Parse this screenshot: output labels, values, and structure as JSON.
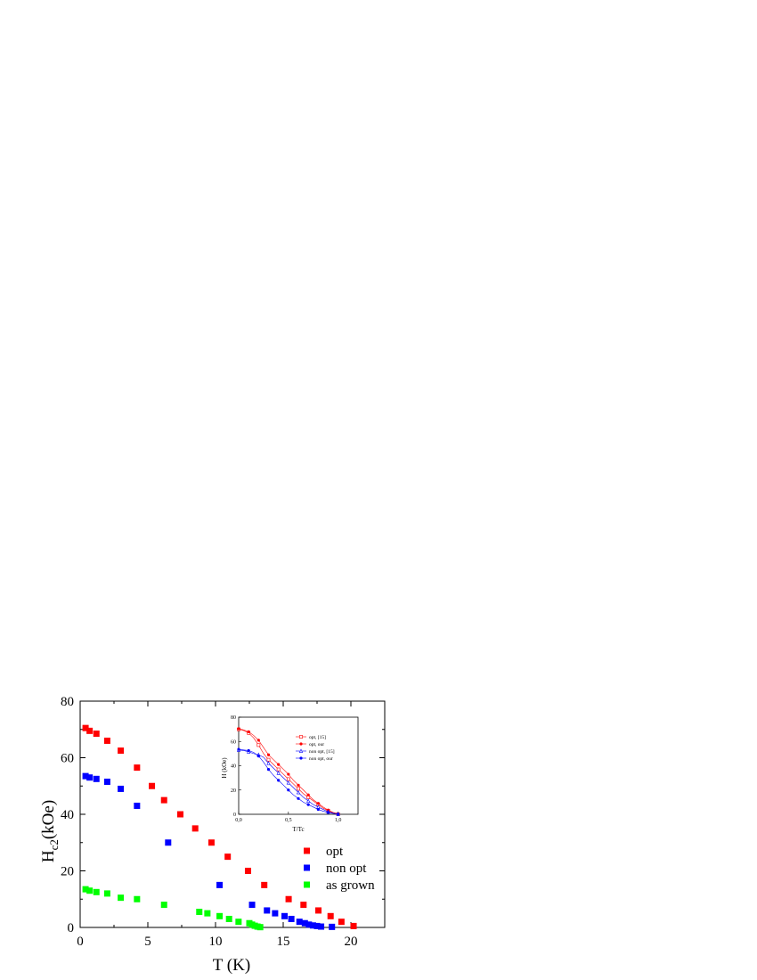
{
  "chart_data": [
    {
      "type": "scatter",
      "xlabel": "T (K)",
      "ylabel_main": "H",
      "ylabel_sub": "c2",
      "ylabel_rest": "(kOe)",
      "xlim": [
        0,
        22.5
      ],
      "ylim": [
        0,
        80
      ],
      "xticks": [
        0,
        5,
        10,
        15,
        20
      ],
      "yticks": [
        0,
        20,
        40,
        60,
        80
      ],
      "grid": false,
      "legend_position": "bottom-right",
      "series": [
        {
          "name": "opt",
          "color": "#ff0000",
          "marker": "square",
          "x": [
            0.4,
            0.7,
            1.2,
            2.0,
            3.0,
            4.2,
            5.3,
            6.2,
            7.4,
            8.5,
            9.7,
            10.9,
            12.4,
            13.6,
            15.4,
            16.5,
            17.6,
            18.5,
            19.3,
            20.2
          ],
          "y": [
            70.5,
            69.5,
            68.5,
            66,
            62.5,
            56.5,
            50,
            45,
            40,
            35,
            30,
            25,
            20,
            15,
            10,
            8,
            6,
            4,
            2,
            0.5
          ]
        },
        {
          "name": "non opt",
          "color": "#0000ff",
          "marker": "square",
          "x": [
            0.4,
            0.7,
            1.2,
            2.0,
            3.0,
            4.2,
            6.5,
            10.3,
            12.7,
            13.8,
            14.4,
            15.1,
            15.6,
            16.2,
            16.6,
            16.9,
            17.2,
            17.5,
            17.8,
            18.6
          ],
          "y": [
            53.5,
            53,
            52.5,
            51.5,
            49,
            43,
            30,
            15,
            8,
            6,
            5,
            4,
            3,
            2,
            1.5,
            1,
            0.7,
            0.5,
            0.3,
            0.2
          ]
        },
        {
          "name": "as grown",
          "color": "#00ff00",
          "marker": "square",
          "x": [
            0.4,
            0.7,
            1.2,
            2.0,
            3.0,
            4.2,
            6.2,
            8.8,
            9.4,
            10.3,
            11.0,
            11.7,
            12.5,
            12.7,
            12.9,
            13.1,
            13.3
          ],
          "y": [
            13.5,
            13,
            12.5,
            12,
            10.5,
            10,
            8,
            5.5,
            5,
            4,
            3,
            2,
            1.5,
            1,
            0.6,
            0.3,
            0.1
          ]
        }
      ]
    },
    {
      "type": "line",
      "xlabel": "T/Tc",
      "ylabel": "H (kOe)",
      "xlim": [
        0,
        1.2
      ],
      "ylim": [
        0,
        80
      ],
      "xticks": [
        "0,0",
        "0,5",
        "1,0"
      ],
      "yticks": [
        0,
        20,
        40,
        60,
        80
      ],
      "legend_position": "top-right",
      "series": [
        {
          "name": "opt, [15]",
          "color": "#ff0000",
          "marker": "open-square",
          "x": [
            0.0,
            0.05,
            0.1,
            0.15,
            0.2,
            0.25,
            0.3,
            0.35,
            0.4,
            0.45,
            0.5,
            0.55,
            0.6,
            0.65,
            0.7,
            0.75,
            0.8,
            0.85,
            0.9,
            0.95,
            1.0
          ],
          "y": [
            70,
            69,
            67,
            63,
            57,
            50,
            45,
            41,
            37,
            33,
            29,
            25,
            21,
            17,
            14,
            11,
            8,
            5,
            3,
            1,
            0
          ]
        },
        {
          "name": "opt, our",
          "color": "#ff0000",
          "marker": "filled-circle",
          "x": [
            0.0,
            0.05,
            0.1,
            0.15,
            0.2,
            0.25,
            0.3,
            0.35,
            0.4,
            0.45,
            0.5,
            0.55,
            0.6,
            0.65,
            0.7,
            0.75,
            0.8,
            0.85,
            0.9,
            0.95,
            1.0
          ],
          "y": [
            70.5,
            69.5,
            68,
            65,
            61,
            55,
            49,
            45,
            41,
            37,
            33,
            28,
            24,
            20,
            16,
            12,
            9,
            6,
            3.5,
            1.5,
            0.5
          ]
        },
        {
          "name": "non opt, [15]",
          "color": "#0000ff",
          "marker": "open-triangle",
          "x": [
            0.0,
            0.05,
            0.1,
            0.15,
            0.2,
            0.25,
            0.3,
            0.35,
            0.4,
            0.45,
            0.5,
            0.55,
            0.6,
            0.65,
            0.7,
            0.75,
            0.8,
            0.85,
            0.9,
            0.95,
            1.0
          ],
          "y": [
            53,
            52.5,
            51.5,
            50,
            49,
            47,
            42,
            38,
            34,
            30,
            26,
            22,
            18,
            14,
            11,
            8,
            6,
            4,
            2,
            1,
            0
          ]
        },
        {
          "name": "non opt, our",
          "color": "#0000ff",
          "marker": "filled-circle",
          "x": [
            0.0,
            0.05,
            0.1,
            0.15,
            0.2,
            0.25,
            0.3,
            0.35,
            0.4,
            0.45,
            0.5,
            0.55,
            0.6,
            0.65,
            0.7,
            0.75,
            0.8,
            0.85,
            0.9,
            0.95,
            1.0
          ],
          "y": [
            53.5,
            53,
            52.5,
            51,
            48,
            43,
            37,
            32,
            28,
            24,
            20,
            16,
            13,
            10,
            8,
            6,
            4,
            2.5,
            1.5,
            0.7,
            0.2
          ]
        }
      ]
    }
  ]
}
